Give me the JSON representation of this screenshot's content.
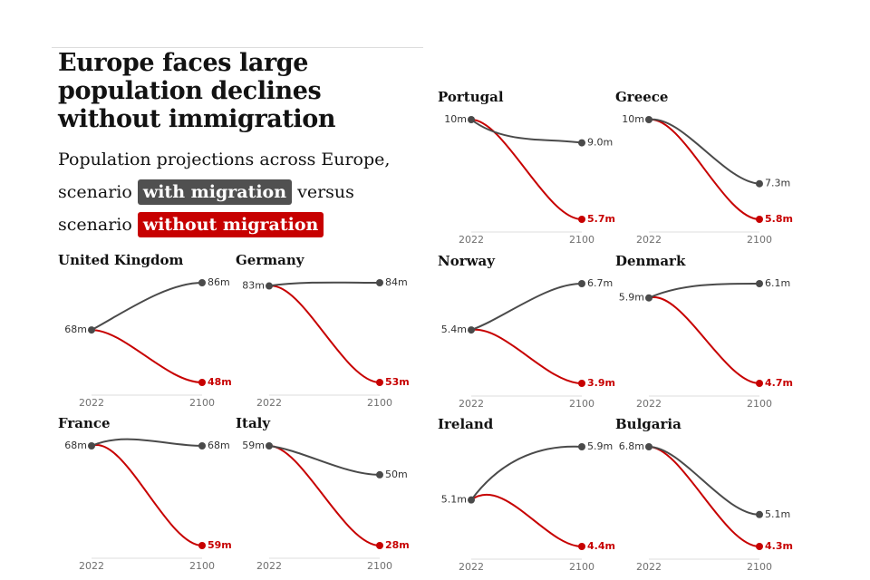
{
  "header": {
    "title": "Europe faces large population declines without immigration",
    "subtitle_prefix": "Population projections across Europe, scenario",
    "with_label": "with migration",
    "versus_text": "versus scenario",
    "without_label": "without migration"
  },
  "colors": {
    "with": "#4a4a4a",
    "without": "#c70000",
    "axis": "#dcdcdc"
  },
  "chart_data": [
    {
      "type": "line",
      "title": "Portugal",
      "x": [
        2022,
        2100
      ],
      "start_label": "10m",
      "with": {
        "name": "with migration",
        "values": [
          10.0,
          9.0
        ],
        "end_label": "9.0m"
      },
      "without": {
        "name": "without migration",
        "values": [
          10.0,
          5.7
        ],
        "end_label": "5.7m"
      }
    },
    {
      "type": "line",
      "title": "Greece",
      "x": [
        2022,
        2100
      ],
      "start_label": "10m",
      "with": {
        "name": "with migration",
        "values": [
          10.0,
          7.3
        ],
        "end_label": "7.3m"
      },
      "without": {
        "name": "without migration",
        "values": [
          10.0,
          5.8
        ],
        "end_label": "5.8m"
      }
    },
    {
      "type": "line",
      "title": "United Kingdom",
      "x": [
        2022,
        2100
      ],
      "start_label": "68m",
      "with": {
        "name": "with migration",
        "values": [
          68,
          86
        ],
        "end_label": "86m"
      },
      "without": {
        "name": "without migration",
        "values": [
          68,
          48
        ],
        "end_label": "48m"
      }
    },
    {
      "type": "line",
      "title": "Germany",
      "x": [
        2022,
        2100
      ],
      "start_label": "83m",
      "with": {
        "name": "with migration",
        "values": [
          83,
          84
        ],
        "end_label": "84m"
      },
      "without": {
        "name": "without migration",
        "values": [
          83,
          53
        ],
        "end_label": "53m"
      }
    },
    {
      "type": "line",
      "title": "Norway",
      "x": [
        2022,
        2100
      ],
      "start_label": "5.4m",
      "with": {
        "name": "with migration",
        "values": [
          5.4,
          6.7
        ],
        "end_label": "6.7m"
      },
      "without": {
        "name": "without migration",
        "values": [
          5.4,
          3.9
        ],
        "end_label": "3.9m"
      }
    },
    {
      "type": "line",
      "title": "Denmark",
      "x": [
        2022,
        2100
      ],
      "start_label": "5.9m",
      "with": {
        "name": "with migration",
        "values": [
          5.9,
          6.1
        ],
        "end_label": "6.1m"
      },
      "without": {
        "name": "without migration",
        "values": [
          5.9,
          4.7
        ],
        "end_label": "4.7m"
      }
    },
    {
      "type": "line",
      "title": "France",
      "x": [
        2022,
        2100
      ],
      "start_label": "68m",
      "with": {
        "name": "with migration",
        "values": [
          68,
          68
        ],
        "end_label": "68m"
      },
      "without": {
        "name": "without migration",
        "values": [
          68,
          59
        ],
        "end_label": "59m"
      }
    },
    {
      "type": "line",
      "title": "Italy",
      "x": [
        2022,
        2100
      ],
      "start_label": "59m",
      "with": {
        "name": "with migration",
        "values": [
          59,
          50
        ],
        "end_label": "50m"
      },
      "without": {
        "name": "without migration",
        "values": [
          59,
          28
        ],
        "end_label": "28m"
      }
    },
    {
      "type": "line",
      "title": "Ireland",
      "x": [
        2022,
        2100
      ],
      "start_label": "5.1m",
      "with": {
        "name": "with migration",
        "values": [
          5.1,
          5.9
        ],
        "end_label": "5.9m"
      },
      "without": {
        "name": "without migration",
        "values": [
          5.1,
          4.4
        ],
        "end_label": "4.4m"
      }
    },
    {
      "type": "line",
      "title": "Bulgaria",
      "x": [
        2022,
        2100
      ],
      "start_label": "6.8m",
      "with": {
        "name": "with migration",
        "values": [
          6.8,
          5.1
        ],
        "end_label": "5.1m"
      },
      "without": {
        "name": "without migration",
        "values": [
          6.8,
          4.3
        ],
        "end_label": "4.3m"
      }
    }
  ]
}
